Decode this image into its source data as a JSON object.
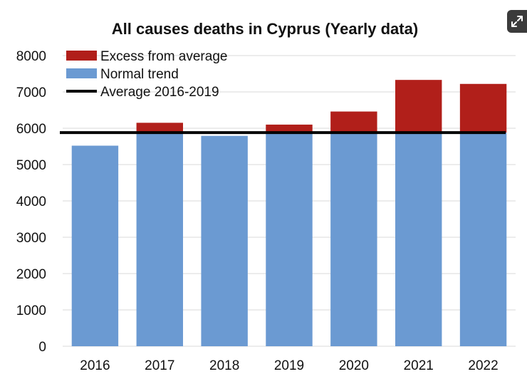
{
  "chart_data": {
    "type": "bar",
    "title": "All causes deaths in Cyprus (Yearly data)",
    "xlabel": "",
    "ylabel": "",
    "categories": [
      "2016",
      "2017",
      "2018",
      "2019",
      "2020",
      "2021",
      "2022"
    ],
    "series": [
      {
        "name": "Normal trend",
        "color": "#6b9ad2",
        "values": [
          5520,
          5880,
          5790,
          5880,
          5880,
          5880,
          5880
        ]
      },
      {
        "name": "Excess from average",
        "color": "#b11f1a",
        "values": [
          0,
          270,
          0,
          220,
          580,
          1450,
          1340
        ]
      }
    ],
    "reference_line": {
      "name": "Average 2016-2019",
      "value": 5880,
      "color": "#000000"
    },
    "stacked": true,
    "ylim": [
      0,
      8000
    ],
    "yticks": [
      "0",
      "1000",
      "2000",
      "3000",
      "4000",
      "5000",
      "6000",
      "7000",
      "8000"
    ],
    "grid": true,
    "legend_position": "top-left"
  },
  "ui": {
    "expand_icon": "expand-icon"
  }
}
